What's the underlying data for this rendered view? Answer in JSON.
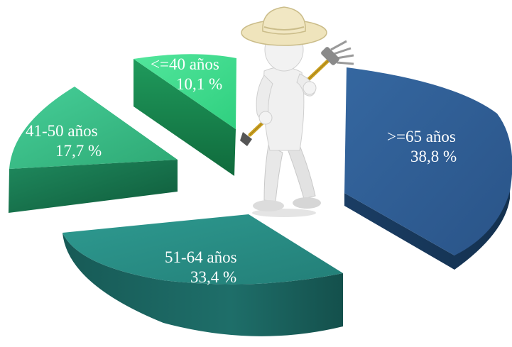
{
  "chart_data": {
    "type": "pie",
    "style": "3d-exploded",
    "slices": [
      {
        "label": "<=40 años",
        "value": 10.1,
        "value_text": "10,1 %",
        "color": "#3fd98c"
      },
      {
        "label": "41-50 años",
        "value": 17.7,
        "value_text": "17,7 %",
        "color": "#33b882"
      },
      {
        "label": "51-64 años",
        "value": 33.4,
        "value_text": "33,4 %",
        "color": "#2b8f8a"
      },
      {
        "label": ">=65 años",
        "value": 38.8,
        "value_text": "38,8 %",
        "color": "#2f5d92"
      }
    ],
    "illustration": "farmer-figure-with-rake"
  }
}
